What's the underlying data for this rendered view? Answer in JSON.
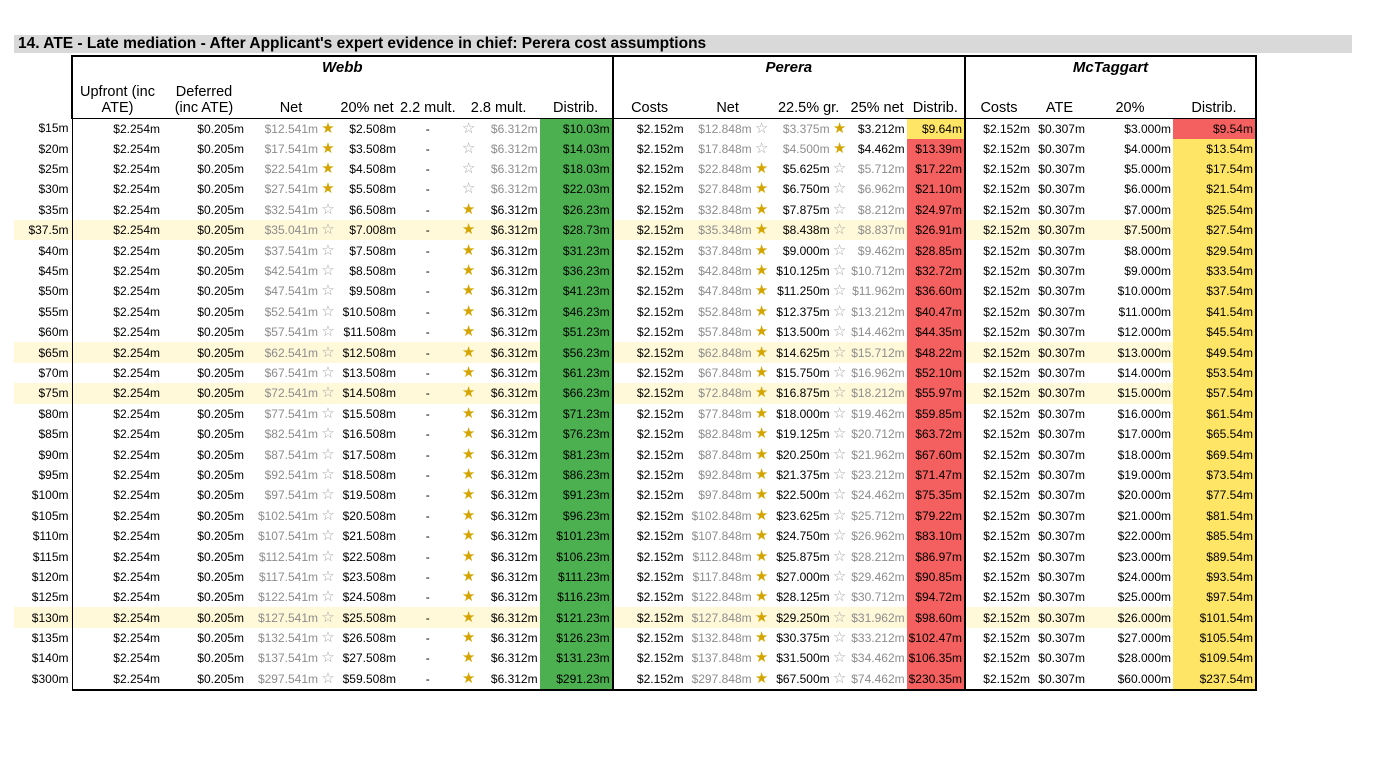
{
  "title": "14.  ATE - Late mediation - After Applicant's expert evidence in chief: Perera cost assumptions",
  "groups": {
    "webb": "Webb",
    "perera": "Perera",
    "mctaggart": "McTaggart"
  },
  "headers": {
    "webb": [
      "Upfront (inc ATE)",
      "Deferred (inc ATE)",
      "Net",
      "20% net",
      "2.2 mult.",
      "2.8 mult.",
      "Distrib."
    ],
    "perera": [
      "Costs",
      "Net",
      "22.5% gr.",
      "25% net",
      "Distrib."
    ],
    "mctaggart": [
      "Costs",
      "ATE",
      "20%",
      "Distrib."
    ]
  },
  "icons": {
    "filled_star": "filled-star-icon",
    "empty_star": "empty-star-icon"
  },
  "colors": {
    "green": "#4cb050",
    "red": "#f4605f",
    "yellow": "#ffe566",
    "highlight": "#fff9d9",
    "title_bg": "#d9d9d9"
  },
  "rows": [
    {
      "label": "$15m",
      "w_up": "$2.254m",
      "w_def": "$0.205m",
      "w_net": "$12.541m",
      "w_s1": "f",
      "w_20": "$2.508m",
      "w_22": "-",
      "w_s2": "e",
      "w_28": "$6.312m",
      "w_dist": "$10.03m",
      "w_dc": "green",
      "p_costs": "$2.152m",
      "p_net": "$12.848m",
      "p_s1": "e",
      "p_225": "$3.375m",
      "p_s2": "f",
      "p_25": "$3.212m",
      "p_dist": "$9.64m",
      "p_dc": "yellow",
      "m_costs": "$2.152m",
      "m_ate": "$0.307m",
      "m_20": "$3.000m",
      "m_dist": "$9.54m",
      "m_dc": "red",
      "hl": false
    },
    {
      "label": "$20m",
      "w_up": "$2.254m",
      "w_def": "$0.205m",
      "w_net": "$17.541m",
      "w_s1": "f",
      "w_20": "$3.508m",
      "w_22": "-",
      "w_s2": "e",
      "w_28": "$6.312m",
      "w_dist": "$14.03m",
      "w_dc": "green",
      "p_costs": "$2.152m",
      "p_net": "$17.848m",
      "p_s1": "e",
      "p_225": "$4.500m",
      "p_s2": "f",
      "p_25": "$4.462m",
      "p_dist": "$13.39m",
      "p_dc": "red",
      "m_costs": "$2.152m",
      "m_ate": "$0.307m",
      "m_20": "$4.000m",
      "m_dist": "$13.54m",
      "m_dc": "yellow",
      "hl": false
    },
    {
      "label": "$25m",
      "w_up": "$2.254m",
      "w_def": "$0.205m",
      "w_net": "$22.541m",
      "w_s1": "f",
      "w_20": "$4.508m",
      "w_22": "-",
      "w_s2": "e",
      "w_28": "$6.312m",
      "w_dist": "$18.03m",
      "w_dc": "green",
      "p_costs": "$2.152m",
      "p_net": "$22.848m",
      "p_s1": "f",
      "p_225": "$5.625m",
      "p_s2": "e",
      "p_25": "$5.712m",
      "p_dist": "$17.22m",
      "p_dc": "red",
      "m_costs": "$2.152m",
      "m_ate": "$0.307m",
      "m_20": "$5.000m",
      "m_dist": "$17.54m",
      "m_dc": "yellow",
      "hl": false
    },
    {
      "label": "$30m",
      "w_up": "$2.254m",
      "w_def": "$0.205m",
      "w_net": "$27.541m",
      "w_s1": "f",
      "w_20": "$5.508m",
      "w_22": "-",
      "w_s2": "e",
      "w_28": "$6.312m",
      "w_dist": "$22.03m",
      "w_dc": "green",
      "p_costs": "$2.152m",
      "p_net": "$27.848m",
      "p_s1": "f",
      "p_225": "$6.750m",
      "p_s2": "e",
      "p_25": "$6.962m",
      "p_dist": "$21.10m",
      "p_dc": "red",
      "m_costs": "$2.152m",
      "m_ate": "$0.307m",
      "m_20": "$6.000m",
      "m_dist": "$21.54m",
      "m_dc": "yellow",
      "hl": false
    },
    {
      "label": "$35m",
      "w_up": "$2.254m",
      "w_def": "$0.205m",
      "w_net": "$32.541m",
      "w_s1": "e",
      "w_20": "$6.508m",
      "w_22": "-",
      "w_s2": "f",
      "w_28": "$6.312m",
      "w_dist": "$26.23m",
      "w_dc": "green",
      "p_costs": "$2.152m",
      "p_net": "$32.848m",
      "p_s1": "f",
      "p_225": "$7.875m",
      "p_s2": "e",
      "p_25": "$8.212m",
      "p_dist": "$24.97m",
      "p_dc": "red",
      "m_costs": "$2.152m",
      "m_ate": "$0.307m",
      "m_20": "$7.000m",
      "m_dist": "$25.54m",
      "m_dc": "yellow",
      "hl": false
    },
    {
      "label": "$37.5m",
      "w_up": "$2.254m",
      "w_def": "$0.205m",
      "w_net": "$35.041m",
      "w_s1": "e",
      "w_20": "$7.008m",
      "w_22": "-",
      "w_s2": "f",
      "w_28": "$6.312m",
      "w_dist": "$28.73m",
      "w_dc": "green",
      "p_costs": "$2.152m",
      "p_net": "$35.348m",
      "p_s1": "f",
      "p_225": "$8.438m",
      "p_s2": "e",
      "p_25": "$8.837m",
      "p_dist": "$26.91m",
      "p_dc": "red",
      "m_costs": "$2.152m",
      "m_ate": "$0.307m",
      "m_20": "$7.500m",
      "m_dist": "$27.54m",
      "m_dc": "yellow",
      "hl": true
    },
    {
      "label": "$40m",
      "w_up": "$2.254m",
      "w_def": "$0.205m",
      "w_net": "$37.541m",
      "w_s1": "e",
      "w_20": "$7.508m",
      "w_22": "-",
      "w_s2": "f",
      "w_28": "$6.312m",
      "w_dist": "$31.23m",
      "w_dc": "green",
      "p_costs": "$2.152m",
      "p_net": "$37.848m",
      "p_s1": "f",
      "p_225": "$9.000m",
      "p_s2": "e",
      "p_25": "$9.462m",
      "p_dist": "$28.85m",
      "p_dc": "red",
      "m_costs": "$2.152m",
      "m_ate": "$0.307m",
      "m_20": "$8.000m",
      "m_dist": "$29.54m",
      "m_dc": "yellow",
      "hl": false
    },
    {
      "label": "$45m",
      "w_up": "$2.254m",
      "w_def": "$0.205m",
      "w_net": "$42.541m",
      "w_s1": "e",
      "w_20": "$8.508m",
      "w_22": "-",
      "w_s2": "f",
      "w_28": "$6.312m",
      "w_dist": "$36.23m",
      "w_dc": "green",
      "p_costs": "$2.152m",
      "p_net": "$42.848m",
      "p_s1": "f",
      "p_225": "$10.125m",
      "p_s2": "e",
      "p_25": "$10.712m",
      "p_dist": "$32.72m",
      "p_dc": "red",
      "m_costs": "$2.152m",
      "m_ate": "$0.307m",
      "m_20": "$9.000m",
      "m_dist": "$33.54m",
      "m_dc": "yellow",
      "hl": false
    },
    {
      "label": "$50m",
      "w_up": "$2.254m",
      "w_def": "$0.205m",
      "w_net": "$47.541m",
      "w_s1": "e",
      "w_20": "$9.508m",
      "w_22": "-",
      "w_s2": "f",
      "w_28": "$6.312m",
      "w_dist": "$41.23m",
      "w_dc": "green",
      "p_costs": "$2.152m",
      "p_net": "$47.848m",
      "p_s1": "f",
      "p_225": "$11.250m",
      "p_s2": "e",
      "p_25": "$11.962m",
      "p_dist": "$36.60m",
      "p_dc": "red",
      "m_costs": "$2.152m",
      "m_ate": "$0.307m",
      "m_20": "$10.000m",
      "m_dist": "$37.54m",
      "m_dc": "yellow",
      "hl": false
    },
    {
      "label": "$55m",
      "w_up": "$2.254m",
      "w_def": "$0.205m",
      "w_net": "$52.541m",
      "w_s1": "e",
      "w_20": "$10.508m",
      "w_22": "-",
      "w_s2": "f",
      "w_28": "$6.312m",
      "w_dist": "$46.23m",
      "w_dc": "green",
      "p_costs": "$2.152m",
      "p_net": "$52.848m",
      "p_s1": "f",
      "p_225": "$12.375m",
      "p_s2": "e",
      "p_25": "$13.212m",
      "p_dist": "$40.47m",
      "p_dc": "red",
      "m_costs": "$2.152m",
      "m_ate": "$0.307m",
      "m_20": "$11.000m",
      "m_dist": "$41.54m",
      "m_dc": "yellow",
      "hl": false
    },
    {
      "label": "$60m",
      "w_up": "$2.254m",
      "w_def": "$0.205m",
      "w_net": "$57.541m",
      "w_s1": "e",
      "w_20": "$11.508m",
      "w_22": "-",
      "w_s2": "f",
      "w_28": "$6.312m",
      "w_dist": "$51.23m",
      "w_dc": "green",
      "p_costs": "$2.152m",
      "p_net": "$57.848m",
      "p_s1": "f",
      "p_225": "$13.500m",
      "p_s2": "e",
      "p_25": "$14.462m",
      "p_dist": "$44.35m",
      "p_dc": "red",
      "m_costs": "$2.152m",
      "m_ate": "$0.307m",
      "m_20": "$12.000m",
      "m_dist": "$45.54m",
      "m_dc": "yellow",
      "hl": false
    },
    {
      "label": "$65m",
      "w_up": "$2.254m",
      "w_def": "$0.205m",
      "w_net": "$62.541m",
      "w_s1": "e",
      "w_20": "$12.508m",
      "w_22": "-",
      "w_s2": "f",
      "w_28": "$6.312m",
      "w_dist": "$56.23m",
      "w_dc": "green",
      "p_costs": "$2.152m",
      "p_net": "$62.848m",
      "p_s1": "f",
      "p_225": "$14.625m",
      "p_s2": "e",
      "p_25": "$15.712m",
      "p_dist": "$48.22m",
      "p_dc": "red",
      "m_costs": "$2.152m",
      "m_ate": "$0.307m",
      "m_20": "$13.000m",
      "m_dist": "$49.54m",
      "m_dc": "yellow",
      "hl": true
    },
    {
      "label": "$70m",
      "w_up": "$2.254m",
      "w_def": "$0.205m",
      "w_net": "$67.541m",
      "w_s1": "e",
      "w_20": "$13.508m",
      "w_22": "-",
      "w_s2": "f",
      "w_28": "$6.312m",
      "w_dist": "$61.23m",
      "w_dc": "green",
      "p_costs": "$2.152m",
      "p_net": "$67.848m",
      "p_s1": "f",
      "p_225": "$15.750m",
      "p_s2": "e",
      "p_25": "$16.962m",
      "p_dist": "$52.10m",
      "p_dc": "red",
      "m_costs": "$2.152m",
      "m_ate": "$0.307m",
      "m_20": "$14.000m",
      "m_dist": "$53.54m",
      "m_dc": "yellow",
      "hl": false
    },
    {
      "label": "$75m",
      "w_up": "$2.254m",
      "w_def": "$0.205m",
      "w_net": "$72.541m",
      "w_s1": "e",
      "w_20": "$14.508m",
      "w_22": "-",
      "w_s2": "f",
      "w_28": "$6.312m",
      "w_dist": "$66.23m",
      "w_dc": "green",
      "p_costs": "$2.152m",
      "p_net": "$72.848m",
      "p_s1": "f",
      "p_225": "$16.875m",
      "p_s2": "e",
      "p_25": "$18.212m",
      "p_dist": "$55.97m",
      "p_dc": "red",
      "m_costs": "$2.152m",
      "m_ate": "$0.307m",
      "m_20": "$15.000m",
      "m_dist": "$57.54m",
      "m_dc": "yellow",
      "hl": true
    },
    {
      "label": "$80m",
      "w_up": "$2.254m",
      "w_def": "$0.205m",
      "w_net": "$77.541m",
      "w_s1": "e",
      "w_20": "$15.508m",
      "w_22": "-",
      "w_s2": "f",
      "w_28": "$6.312m",
      "w_dist": "$71.23m",
      "w_dc": "green",
      "p_costs": "$2.152m",
      "p_net": "$77.848m",
      "p_s1": "f",
      "p_225": "$18.000m",
      "p_s2": "e",
      "p_25": "$19.462m",
      "p_dist": "$59.85m",
      "p_dc": "red",
      "m_costs": "$2.152m",
      "m_ate": "$0.307m",
      "m_20": "$16.000m",
      "m_dist": "$61.54m",
      "m_dc": "yellow",
      "hl": false
    },
    {
      "label": "$85m",
      "w_up": "$2.254m",
      "w_def": "$0.205m",
      "w_net": "$82.541m",
      "w_s1": "e",
      "w_20": "$16.508m",
      "w_22": "-",
      "w_s2": "f",
      "w_28": "$6.312m",
      "w_dist": "$76.23m",
      "w_dc": "green",
      "p_costs": "$2.152m",
      "p_net": "$82.848m",
      "p_s1": "f",
      "p_225": "$19.125m",
      "p_s2": "e",
      "p_25": "$20.712m",
      "p_dist": "$63.72m",
      "p_dc": "red",
      "m_costs": "$2.152m",
      "m_ate": "$0.307m",
      "m_20": "$17.000m",
      "m_dist": "$65.54m",
      "m_dc": "yellow",
      "hl": false
    },
    {
      "label": "$90m",
      "w_up": "$2.254m",
      "w_def": "$0.205m",
      "w_net": "$87.541m",
      "w_s1": "e",
      "w_20": "$17.508m",
      "w_22": "-",
      "w_s2": "f",
      "w_28": "$6.312m",
      "w_dist": "$81.23m",
      "w_dc": "green",
      "p_costs": "$2.152m",
      "p_net": "$87.848m",
      "p_s1": "f",
      "p_225": "$20.250m",
      "p_s2": "e",
      "p_25": "$21.962m",
      "p_dist": "$67.60m",
      "p_dc": "red",
      "m_costs": "$2.152m",
      "m_ate": "$0.307m",
      "m_20": "$18.000m",
      "m_dist": "$69.54m",
      "m_dc": "yellow",
      "hl": false
    },
    {
      "label": "$95m",
      "w_up": "$2.254m",
      "w_def": "$0.205m",
      "w_net": "$92.541m",
      "w_s1": "e",
      "w_20": "$18.508m",
      "w_22": "-",
      "w_s2": "f",
      "w_28": "$6.312m",
      "w_dist": "$86.23m",
      "w_dc": "green",
      "p_costs": "$2.152m",
      "p_net": "$92.848m",
      "p_s1": "f",
      "p_225": "$21.375m",
      "p_s2": "e",
      "p_25": "$23.212m",
      "p_dist": "$71.47m",
      "p_dc": "red",
      "m_costs": "$2.152m",
      "m_ate": "$0.307m",
      "m_20": "$19.000m",
      "m_dist": "$73.54m",
      "m_dc": "yellow",
      "hl": false
    },
    {
      "label": "$100m",
      "w_up": "$2.254m",
      "w_def": "$0.205m",
      "w_net": "$97.541m",
      "w_s1": "e",
      "w_20": "$19.508m",
      "w_22": "-",
      "w_s2": "f",
      "w_28": "$6.312m",
      "w_dist": "$91.23m",
      "w_dc": "green",
      "p_costs": "$2.152m",
      "p_net": "$97.848m",
      "p_s1": "f",
      "p_225": "$22.500m",
      "p_s2": "e",
      "p_25": "$24.462m",
      "p_dist": "$75.35m",
      "p_dc": "red",
      "m_costs": "$2.152m",
      "m_ate": "$0.307m",
      "m_20": "$20.000m",
      "m_dist": "$77.54m",
      "m_dc": "yellow",
      "hl": false
    },
    {
      "label": "$105m",
      "w_up": "$2.254m",
      "w_def": "$0.205m",
      "w_net": "$102.541m",
      "w_s1": "e",
      "w_20": "$20.508m",
      "w_22": "-",
      "w_s2": "f",
      "w_28": "$6.312m",
      "w_dist": "$96.23m",
      "w_dc": "green",
      "p_costs": "$2.152m",
      "p_net": "$102.848m",
      "p_s1": "f",
      "p_225": "$23.625m",
      "p_s2": "e",
      "p_25": "$25.712m",
      "p_dist": "$79.22m",
      "p_dc": "red",
      "m_costs": "$2.152m",
      "m_ate": "$0.307m",
      "m_20": "$21.000m",
      "m_dist": "$81.54m",
      "m_dc": "yellow",
      "hl": false
    },
    {
      "label": "$110m",
      "w_up": "$2.254m",
      "w_def": "$0.205m",
      "w_net": "$107.541m",
      "w_s1": "e",
      "w_20": "$21.508m",
      "w_22": "-",
      "w_s2": "f",
      "w_28": "$6.312m",
      "w_dist": "$101.23m",
      "w_dc": "green",
      "p_costs": "$2.152m",
      "p_net": "$107.848m",
      "p_s1": "f",
      "p_225": "$24.750m",
      "p_s2": "e",
      "p_25": "$26.962m",
      "p_dist": "$83.10m",
      "p_dc": "red",
      "m_costs": "$2.152m",
      "m_ate": "$0.307m",
      "m_20": "$22.000m",
      "m_dist": "$85.54m",
      "m_dc": "yellow",
      "hl": false
    },
    {
      "label": "$115m",
      "w_up": "$2.254m",
      "w_def": "$0.205m",
      "w_net": "$112.541m",
      "w_s1": "e",
      "w_20": "$22.508m",
      "w_22": "-",
      "w_s2": "f",
      "w_28": "$6.312m",
      "w_dist": "$106.23m",
      "w_dc": "green",
      "p_costs": "$2.152m",
      "p_net": "$112.848m",
      "p_s1": "f",
      "p_225": "$25.875m",
      "p_s2": "e",
      "p_25": "$28.212m",
      "p_dist": "$86.97m",
      "p_dc": "red",
      "m_costs": "$2.152m",
      "m_ate": "$0.307m",
      "m_20": "$23.000m",
      "m_dist": "$89.54m",
      "m_dc": "yellow",
      "hl": false
    },
    {
      "label": "$120m",
      "w_up": "$2.254m",
      "w_def": "$0.205m",
      "w_net": "$117.541m",
      "w_s1": "e",
      "w_20": "$23.508m",
      "w_22": "-",
      "w_s2": "f",
      "w_28": "$6.312m",
      "w_dist": "$111.23m",
      "w_dc": "green",
      "p_costs": "$2.152m",
      "p_net": "$117.848m",
      "p_s1": "f",
      "p_225": "$27.000m",
      "p_s2": "e",
      "p_25": "$29.462m",
      "p_dist": "$90.85m",
      "p_dc": "red",
      "m_costs": "$2.152m",
      "m_ate": "$0.307m",
      "m_20": "$24.000m",
      "m_dist": "$93.54m",
      "m_dc": "yellow",
      "hl": false
    },
    {
      "label": "$125m",
      "w_up": "$2.254m",
      "w_def": "$0.205m",
      "w_net": "$122.541m",
      "w_s1": "e",
      "w_20": "$24.508m",
      "w_22": "-",
      "w_s2": "f",
      "w_28": "$6.312m",
      "w_dist": "$116.23m",
      "w_dc": "green",
      "p_costs": "$2.152m",
      "p_net": "$122.848m",
      "p_s1": "f",
      "p_225": "$28.125m",
      "p_s2": "e",
      "p_25": "$30.712m",
      "p_dist": "$94.72m",
      "p_dc": "red",
      "m_costs": "$2.152m",
      "m_ate": "$0.307m",
      "m_20": "$25.000m",
      "m_dist": "$97.54m",
      "m_dc": "yellow",
      "hl": false
    },
    {
      "label": "$130m",
      "w_up": "$2.254m",
      "w_def": "$0.205m",
      "w_net": "$127.541m",
      "w_s1": "e",
      "w_20": "$25.508m",
      "w_22": "-",
      "w_s2": "f",
      "w_28": "$6.312m",
      "w_dist": "$121.23m",
      "w_dc": "green",
      "p_costs": "$2.152m",
      "p_net": "$127.848m",
      "p_s1": "f",
      "p_225": "$29.250m",
      "p_s2": "e",
      "p_25": "$31.962m",
      "p_dist": "$98.60m",
      "p_dc": "red",
      "m_costs": "$2.152m",
      "m_ate": "$0.307m",
      "m_20": "$26.000m",
      "m_dist": "$101.54m",
      "m_dc": "yellow",
      "hl": true
    },
    {
      "label": "$135m",
      "w_up": "$2.254m",
      "w_def": "$0.205m",
      "w_net": "$132.541m",
      "w_s1": "e",
      "w_20": "$26.508m",
      "w_22": "-",
      "w_s2": "f",
      "w_28": "$6.312m",
      "w_dist": "$126.23m",
      "w_dc": "green",
      "p_costs": "$2.152m",
      "p_net": "$132.848m",
      "p_s1": "f",
      "p_225": "$30.375m",
      "p_s2": "e",
      "p_25": "$33.212m",
      "p_dist": "$102.47m",
      "p_dc": "red",
      "m_costs": "$2.152m",
      "m_ate": "$0.307m",
      "m_20": "$27.000m",
      "m_dist": "$105.54m",
      "m_dc": "yellow",
      "hl": false
    },
    {
      "label": "$140m",
      "w_up": "$2.254m",
      "w_def": "$0.205m",
      "w_net": "$137.541m",
      "w_s1": "e",
      "w_20": "$27.508m",
      "w_22": "-",
      "w_s2": "f",
      "w_28": "$6.312m",
      "w_dist": "$131.23m",
      "w_dc": "green",
      "p_costs": "$2.152m",
      "p_net": "$137.848m",
      "p_s1": "f",
      "p_225": "$31.500m",
      "p_s2": "e",
      "p_25": "$34.462m",
      "p_dist": "$106.35m",
      "p_dc": "red",
      "m_costs": "$2.152m",
      "m_ate": "$0.307m",
      "m_20": "$28.000m",
      "m_dist": "$109.54m",
      "m_dc": "yellow",
      "hl": false
    },
    {
      "label": "$300m",
      "w_up": "$2.254m",
      "w_def": "$0.205m",
      "w_net": "$297.541m",
      "w_s1": "e",
      "w_20": "$59.508m",
      "w_22": "-",
      "w_s2": "f",
      "w_28": "$6.312m",
      "w_dist": "$291.23m",
      "w_dc": "green",
      "p_costs": "$2.152m",
      "p_net": "$297.848m",
      "p_s1": "f",
      "p_225": "$67.500m",
      "p_s2": "e",
      "p_25": "$74.462m",
      "p_dist": "$230.35m",
      "p_dc": "red",
      "m_costs": "$2.152m",
      "m_ate": "$0.307m",
      "m_20": "$60.000m",
      "m_dist": "$237.54m",
      "m_dc": "yellow",
      "hl": false
    }
  ]
}
